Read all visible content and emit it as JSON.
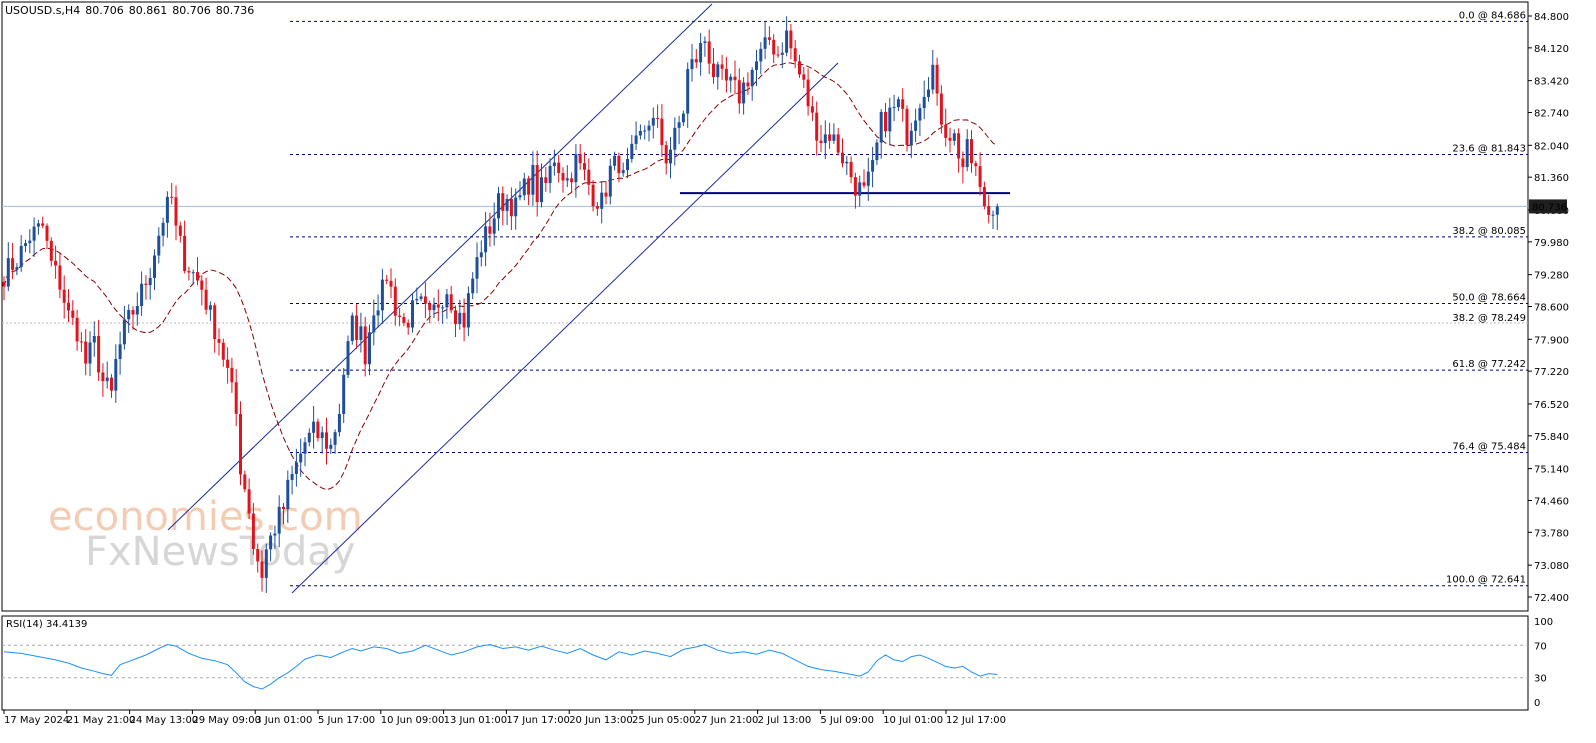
{
  "header": {
    "symbol": "USOUSD.s,H4",
    "open": "80.706",
    "high": "80.861",
    "low": "80.706",
    "close": "80.736"
  },
  "watermark": {
    "line1": "economies.com",
    "line2": "FxNewsToday"
  },
  "chart_data": {
    "type": "candlestick",
    "price_axis": {
      "ylim": [
        72.1,
        85.2
      ],
      "ticks": [
        "84.800",
        "84.120",
        "83.420",
        "82.740",
        "82.040",
        "81.360",
        "80.660",
        "79.980",
        "79.280",
        "78.600",
        "77.900",
        "77.220",
        "76.520",
        "75.840",
        "75.140",
        "74.460",
        "73.780",
        "73.080",
        "72.400"
      ],
      "current_price": "80.736"
    },
    "time_axis": {
      "labels": [
        "17 May 2024",
        "21 May 21:00",
        "24 May 13:00",
        "29 May 09:00",
        "3 Jun 01:00",
        "5 Jun 17:00",
        "10 Jun 09:00",
        "13 Jun 01:00",
        "17 Jun 17:00",
        "20 Jun 13:00",
        "25 Jun 05:00",
        "27 Jun 21:00",
        "2 Jul 13:00",
        "5 Jul 09:00",
        "10 Jul 01:00",
        "12 Jul 17:00"
      ]
    },
    "fibonacci": [
      {
        "label": "0.0 @ 84.686",
        "value": 84.686
      },
      {
        "label": "23.6 @ 81.843",
        "value": 81.843
      },
      {
        "label": "38.2 @ 80.085",
        "value": 80.085
      },
      {
        "label": "50.0 @ 78.664",
        "value": 78.664
      },
      {
        "label": "61.8 @ 77.242",
        "value": 77.242
      },
      {
        "label": "76.4 @ 75.484",
        "value": 75.484
      },
      {
        "label": "100.0 @ 72.641",
        "value": 72.641
      }
    ],
    "old_fibonacci": {
      "label": "38.2 @ 78.249",
      "value": 78.249
    },
    "support_line": 81.02,
    "close_path": [
      [
        0,
        79.3
      ],
      [
        3,
        79.6
      ],
      [
        6,
        80.1
      ],
      [
        9,
        80.3
      ],
      [
        11,
        79.5
      ],
      [
        13,
        79.1
      ],
      [
        15,
        78.4
      ],
      [
        17,
        78.1
      ],
      [
        19,
        77.4
      ],
      [
        21,
        77.8
      ],
      [
        23,
        77.0
      ],
      [
        25,
        76.7
      ],
      [
        26,
        77.4
      ],
      [
        28,
        78.1
      ],
      [
        30,
        78.5
      ],
      [
        32,
        78.9
      ],
      [
        34,
        79.4
      ],
      [
        35,
        79.8
      ],
      [
        37,
        80.5
      ],
      [
        39,
        80.9
      ],
      [
        40,
        80.2
      ],
      [
        42,
        79.6
      ],
      [
        44,
        79.3
      ],
      [
        46,
        79.0
      ],
      [
        48,
        78.4
      ],
      [
        50,
        77.9
      ],
      [
        52,
        77.2
      ],
      [
        54,
        76.3
      ],
      [
        55,
        75.2
      ],
      [
        57,
        74.3
      ],
      [
        58,
        73.5
      ],
      [
        60,
        72.9
      ],
      [
        61,
        73.4
      ],
      [
        63,
        73.9
      ],
      [
        65,
        74.3
      ],
      [
        66,
        74.7
      ],
      [
        68,
        75.2
      ],
      [
        70,
        75.7
      ],
      [
        72,
        75.9
      ],
      [
        74,
        75.8
      ],
      [
        76,
        75.6
      ],
      [
        78,
        76.4
      ],
      [
        79,
        77.2
      ],
      [
        81,
        78.2
      ],
      [
        83,
        78.0
      ],
      [
        84,
        77.6
      ],
      [
        86,
        78.6
      ],
      [
        88,
        78.9
      ],
      [
        89,
        79.3
      ],
      [
        91,
        78.6
      ],
      [
        93,
        78.2
      ],
      [
        95,
        78.5
      ],
      [
        97,
        78.6
      ],
      [
        99,
        78.3
      ],
      [
        101,
        78.7
      ],
      [
        103,
        79.0
      ],
      [
        105,
        78.5
      ],
      [
        107,
        78.3
      ],
      [
        109,
        79.2
      ],
      [
        111,
        79.9
      ],
      [
        113,
        80.3
      ],
      [
        115,
        80.8
      ],
      [
        117,
        80.9
      ],
      [
        119,
        80.7
      ],
      [
        121,
        81.1
      ],
      [
        123,
        81.4
      ],
      [
        124,
        81.0
      ],
      [
        126,
        81.2
      ],
      [
        128,
        81.8
      ],
      [
        129,
        81.6
      ],
      [
        131,
        81.3
      ],
      [
        133,
        81.7
      ],
      [
        135,
        81.4
      ],
      [
        137,
        81.0
      ],
      [
        139,
        80.8
      ],
      [
        141,
        81.5
      ],
      [
        143,
        81.7
      ],
      [
        144,
        81.3
      ],
      [
        146,
        81.8
      ],
      [
        148,
        82.2
      ],
      [
        150,
        82.6
      ],
      [
        152,
        82.4
      ],
      [
        154,
        81.8
      ],
      [
        156,
        82.2
      ],
      [
        158,
        82.8
      ],
      [
        159,
        83.6
      ],
      [
        161,
        83.9
      ],
      [
        163,
        84.3
      ],
      [
        165,
        83.6
      ],
      [
        167,
        83.4
      ],
      [
        169,
        83.3
      ],
      [
        171,
        83.1
      ],
      [
        173,
        83.5
      ],
      [
        175,
        83.8
      ],
      [
        177,
        84.1
      ],
      [
        178,
        84.3
      ],
      [
        180,
        84.0
      ],
      [
        182,
        84.4
      ],
      [
        184,
        83.8
      ],
      [
        186,
        83.3
      ],
      [
        188,
        82.6
      ],
      [
        190,
        82.2
      ],
      [
        192,
        82.3
      ],
      [
        194,
        82.0
      ],
      [
        196,
        81.6
      ],
      [
        198,
        81.2
      ],
      [
        200,
        81.0
      ],
      [
        202,
        81.5
      ],
      [
        204,
        82.5
      ],
      [
        206,
        82.7
      ],
      [
        208,
        82.9
      ],
      [
        210,
        82.3
      ],
      [
        212,
        82.8
      ],
      [
        214,
        83.3
      ],
      [
        216,
        83.7
      ],
      [
        217,
        82.9
      ],
      [
        219,
        82.4
      ],
      [
        221,
        82.2
      ],
      [
        223,
        81.6
      ],
      [
        224,
        81.9
      ],
      [
        226,
        81.5
      ],
      [
        227,
        81.0
      ],
      [
        229,
        80.6
      ],
      [
        230,
        80.8
      ],
      [
        231,
        80.736
      ]
    ],
    "indicator": {
      "name": "RSI(14)",
      "value": "34.4139",
      "ticks": [
        "100",
        "70",
        "30",
        "0"
      ],
      "levels": [
        70,
        30
      ],
      "series": [
        [
          0,
          62
        ],
        [
          4,
          60
        ],
        [
          8,
          56
        ],
        [
          12,
          52
        ],
        [
          15,
          48
        ],
        [
          18,
          42
        ],
        [
          21,
          38
        ],
        [
          23,
          35
        ],
        [
          25,
          33
        ],
        [
          27,
          46
        ],
        [
          30,
          52
        ],
        [
          33,
          58
        ],
        [
          36,
          66
        ],
        [
          38,
          71
        ],
        [
          40,
          69
        ],
        [
          43,
          60
        ],
        [
          46,
          54
        ],
        [
          49,
          51
        ],
        [
          52,
          46
        ],
        [
          54,
          36
        ],
        [
          56,
          25
        ],
        [
          58,
          19
        ],
        [
          60,
          16
        ],
        [
          62,
          22
        ],
        [
          64,
          30
        ],
        [
          66,
          36
        ],
        [
          68,
          44
        ],
        [
          70,
          53
        ],
        [
          73,
          58
        ],
        [
          76,
          55
        ],
        [
          79,
          62
        ],
        [
          81,
          66
        ],
        [
          83,
          63
        ],
        [
          86,
          68
        ],
        [
          89,
          66
        ],
        [
          92,
          60
        ],
        [
          95,
          63
        ],
        [
          98,
          70
        ],
        [
          101,
          64
        ],
        [
          104,
          58
        ],
        [
          107,
          62
        ],
        [
          110,
          68
        ],
        [
          113,
          71
        ],
        [
          116,
          66
        ],
        [
          119,
          68
        ],
        [
          122,
          64
        ],
        [
          125,
          69
        ],
        [
          128,
          64
        ],
        [
          131,
          60
        ],
        [
          134,
          66
        ],
        [
          137,
          58
        ],
        [
          140,
          52
        ],
        [
          143,
          62
        ],
        [
          146,
          58
        ],
        [
          149,
          63
        ],
        [
          152,
          60
        ],
        [
          155,
          56
        ],
        [
          158,
          65
        ],
        [
          161,
          68
        ],
        [
          163,
          71
        ],
        [
          166,
          64
        ],
        [
          169,
          60
        ],
        [
          172,
          62
        ],
        [
          175,
          59
        ],
        [
          178,
          64
        ],
        [
          181,
          60
        ],
        [
          184,
          52
        ],
        [
          187,
          44
        ],
        [
          190,
          40
        ],
        [
          193,
          38
        ],
        [
          196,
          35
        ],
        [
          199,
          32
        ],
        [
          201,
          37
        ],
        [
          203,
          51
        ],
        [
          205,
          58
        ],
        [
          207,
          52
        ],
        [
          209,
          50
        ],
        [
          211,
          56
        ],
        [
          213,
          58
        ],
        [
          215,
          54
        ],
        [
          217,
          49
        ],
        [
          219,
          44
        ],
        [
          221,
          42
        ],
        [
          223,
          44
        ],
        [
          225,
          37
        ],
        [
          227,
          32
        ],
        [
          229,
          35
        ],
        [
          231,
          34
        ]
      ]
    }
  },
  "colors": {
    "bull": "#1f4f9c",
    "bear": "#e0141e",
    "ma": "#8b0000",
    "fib": "#00007f",
    "rsi": "#1e90ff",
    "axis": "#000000",
    "price_label_bg": "#1f1f1f"
  }
}
